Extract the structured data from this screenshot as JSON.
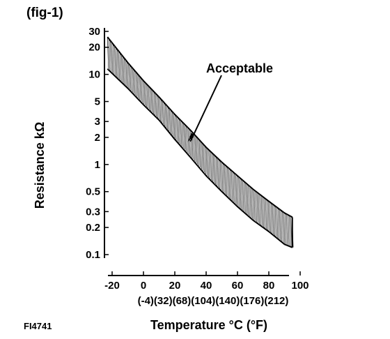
{
  "figure_label": "(fig-1)",
  "figure_code": "FI4741",
  "chart_data": {
    "type": "area",
    "title": "",
    "xlabel": "Temperature °C (°F)",
    "ylabel": "Resistance kΩ",
    "xlim": [
      -20,
      100
    ],
    "ylim": [
      0.1,
      30
    ],
    "yscale": "log",
    "grid": false,
    "x_ticks": [
      -20,
      0,
      20,
      40,
      60,
      80,
      100
    ],
    "x_tick_labels": [
      "-20",
      "0",
      "20",
      "40",
      "60",
      "80",
      "100"
    ],
    "x_tick_labels_f": [
      "(-4)",
      "(32)",
      "(68)",
      "(104)",
      "(140)",
      "(176)",
      "(212)"
    ],
    "y_ticks": [
      0.1,
      0.2,
      0.3,
      0.5,
      1,
      2,
      3,
      5,
      10,
      20,
      30
    ],
    "y_tick_labels": [
      "0.1",
      "0.2",
      "0.3",
      "0.5",
      "1",
      "2",
      "3",
      "5",
      "10",
      "20",
      "30"
    ],
    "band": {
      "x": [
        -23,
        -10,
        0,
        10,
        20,
        30,
        40,
        50,
        60,
        70,
        80,
        90,
        95
      ],
      "upper": [
        26,
        13.5,
        8.5,
        5.6,
        3.6,
        2.4,
        1.55,
        1.06,
        0.75,
        0.53,
        0.39,
        0.29,
        0.26
      ],
      "lower": [
        11.5,
        7,
        4.6,
        3.1,
        1.9,
        1.2,
        0.75,
        0.5,
        0.34,
        0.24,
        0.18,
        0.13,
        0.12
      ]
    },
    "annotations": [
      {
        "text": "Acceptable",
        "x": 30,
        "y": 1.8
      }
    ]
  }
}
